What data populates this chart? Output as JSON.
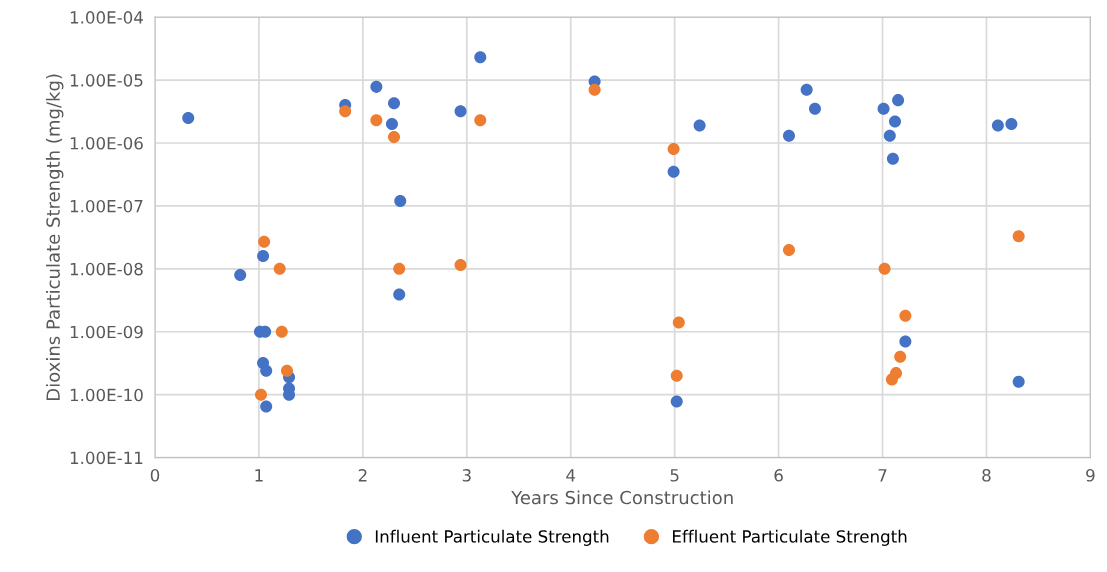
{
  "chart_data": {
    "type": "scatter",
    "xlabel": "Years Since Construction",
    "ylabel": "Dioxins Particulate Strength (mg/kg)",
    "log": true,
    "grid": true,
    "legend": "bottom",
    "marker": "circle",
    "xlim": [
      0,
      9
    ],
    "xticks": [
      0,
      1,
      2,
      3,
      4,
      5,
      6,
      7,
      8,
      9
    ],
    "ylim": [
      1e-11,
      0.0001
    ],
    "yticks": [
      {
        "value": 1e-11,
        "label": "1.00E-11"
      },
      {
        "value": 1e-10,
        "label": "1.00E-10"
      },
      {
        "value": 1e-09,
        "label": "1.00E-09"
      },
      {
        "value": 1e-08,
        "label": "1.00E-08"
      },
      {
        "value": 1e-07,
        "label": "1.00E-07"
      },
      {
        "value": 1e-06,
        "label": "1.00E-06"
      },
      {
        "value": 1e-05,
        "label": "1.00E-05"
      },
      {
        "value": 0.0001,
        "label": "1.00E-04"
      }
    ],
    "series": [
      {
        "name": "Influent Particulate Strength",
        "color": "#4472c4",
        "x": [
          0.32,
          0.82,
          1.04,
          1.01,
          1.06,
          1.04,
          1.07,
          1.07,
          1.29,
          1.29,
          1.29,
          1.83,
          2.13,
          2.3,
          2.28,
          2.36,
          2.35,
          2.94,
          3.13,
          4.23,
          5.24,
          4.99,
          5.02,
          6.27,
          6.35,
          6.1,
          7.01,
          7.15,
          7.12,
          7.07,
          7.1,
          7.22,
          8.11,
          8.24,
          8.31
        ],
        "values": [
          2.5e-06,
          8e-09,
          1.6e-08,
          1e-09,
          1e-09,
          3.2e-10,
          2.4e-10,
          6.5e-11,
          1.9e-10,
          1.25e-10,
          1e-10,
          4e-06,
          7.8e-06,
          4.3e-06,
          2e-06,
          1.2e-07,
          3.9e-09,
          3.2e-06,
          2.3e-05,
          9.5e-06,
          1.9e-06,
          3.5e-07,
          7.8e-11,
          7e-06,
          3.5e-06,
          1.3e-06,
          3.5e-06,
          4.8e-06,
          2.2e-06,
          1.3e-06,
          5.6e-07,
          7e-10,
          1.9e-06,
          2e-06,
          1.6e-10
        ]
      },
      {
        "name": "Effluent Particulate Strength",
        "color": "#ed7d31",
        "x": [
          1.83,
          2.13,
          2.3,
          3.13,
          4.23,
          1.05,
          1.2,
          2.35,
          2.94,
          1.22,
          1.27,
          1.02,
          4.99,
          5.04,
          5.02,
          6.1,
          7.02,
          7.22,
          7.17,
          7.13,
          7.09,
          8.31
        ],
        "values": [
          3.2e-06,
          2.3e-06,
          1.25e-06,
          2.3e-06,
          7e-06,
          2.7e-08,
          1e-08,
          1e-08,
          1.15e-08,
          1e-09,
          2.4e-10,
          1e-10,
          8e-07,
          1.4e-09,
          2e-10,
          2e-08,
          1e-08,
          1.8e-09,
          4e-10,
          2.2e-10,
          1.75e-10,
          3.3e-08
        ]
      }
    ]
  }
}
